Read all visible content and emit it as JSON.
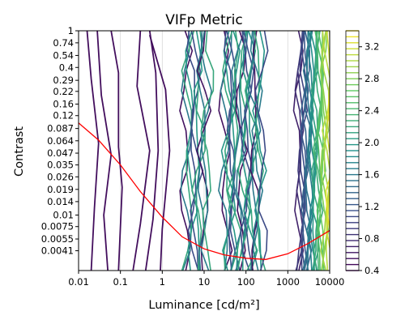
{
  "chart_data": {
    "type": "contour",
    "title": "VIFp Metric",
    "xlabel": "Luminance [cd/m²]",
    "ylabel": "Contrast",
    "xscale": "log",
    "yscale": "log",
    "xlim": [
      0.01,
      10000
    ],
    "ylim": [
      0.0025,
      1
    ],
    "x_tick_labels": [
      "0.01",
      "0.1",
      "1",
      "10",
      "100",
      "1000",
      "10000"
    ],
    "x_tick_values": [
      0.01,
      0.1,
      1,
      10,
      100,
      1000,
      10000
    ],
    "y_tick_labels": [
      "1",
      "0.74",
      "0.54",
      "0.4",
      "0.29",
      "0.22",
      "0.16",
      "0.12",
      "0.087",
      "0.064",
      "0.047",
      "0.035",
      "0.026",
      "0.019",
      "0.014",
      "0.01",
      "0.0075",
      "0.0055",
      "0.0041"
    ],
    "y_tick_values": [
      1,
      0.74,
      0.54,
      0.4,
      0.29,
      0.22,
      0.16,
      0.12,
      0.087,
      0.064,
      0.047,
      0.035,
      0.026,
      0.019,
      0.014,
      0.01,
      0.0075,
      0.0055,
      0.0041
    ],
    "grid": "vertical",
    "colorbar": {
      "colormap": "viridis",
      "min": 0.4,
      "max": 3.4,
      "tick_labels": [
        "0.4",
        "0.8",
        "1.2",
        "1.6",
        "2.0",
        "2.4",
        "2.8",
        "3.2"
      ],
      "tick_values": [
        0.4,
        0.8,
        1.2,
        1.6,
        2.0,
        2.4,
        2.8,
        3.2
      ],
      "levels": 40
    },
    "threshold_curve": {
      "color": "#ff0000",
      "points": [
        [
          0.01,
          0.1
        ],
        [
          0.03,
          0.065
        ],
        [
          0.1,
          0.035
        ],
        [
          0.3,
          0.018
        ],
        [
          1,
          0.0095
        ],
        [
          3,
          0.0058
        ],
        [
          10,
          0.0043
        ],
        [
          30,
          0.0037
        ],
        [
          100,
          0.0034
        ],
        [
          300,
          0.0033
        ],
        [
          1000,
          0.0038
        ],
        [
          3000,
          0.0049
        ],
        [
          10000,
          0.0068
        ]
      ]
    },
    "contour_bands": [
      {
        "from": 3.5,
        "to": 12,
        "count": 12
      },
      {
        "from": 30,
        "to": 60,
        "count": 9
      },
      {
        "from": 70,
        "to": 240,
        "count": 14
      },
      {
        "from": 1800,
        "to": 10000,
        "count": 26
      }
    ]
  }
}
